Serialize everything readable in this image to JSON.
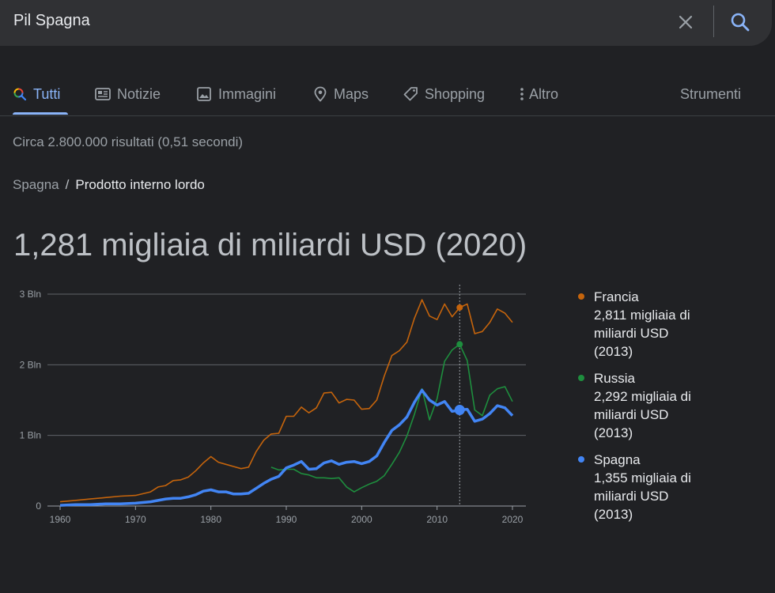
{
  "search": {
    "query": "Pil Spagna"
  },
  "icons": {
    "clear": "close-icon",
    "search": "search-icon"
  },
  "tabs": [
    {
      "label": "Tutti",
      "icon": "google-search-icon",
      "active": true
    },
    {
      "label": "Notizie",
      "icon": "news-icon"
    },
    {
      "label": "Immagini",
      "icon": "image-icon"
    },
    {
      "label": "Maps",
      "icon": "map-pin-icon"
    },
    {
      "label": "Shopping",
      "icon": "tag-icon"
    },
    {
      "label": "Altro",
      "icon": "more-vert-icon"
    }
  ],
  "tools_label": "Strumenti",
  "result_stats": "Circa 2.800.000 risultati (0,51 secondi)",
  "breadcrumb": {
    "parent": "Spagna",
    "sep": "/",
    "current": "Prodotto interno lordo"
  },
  "headline": "1,281 migliaia di miliardi USD (2020)",
  "legend": [
    {
      "name": "Francia",
      "value": "2,811 migliaia di miliardi USD",
      "year": "(2013)",
      "color": "#c5640c"
    },
    {
      "name": "Russia",
      "value": "2,292 migliaia di miliardi USD",
      "year": "(2013)",
      "color": "#1e8e3e"
    },
    {
      "name": "Spagna",
      "value": "1,355 migliaia di miliardi USD",
      "year": "(2013)",
      "color": "#4285f4"
    }
  ],
  "chart_data": {
    "type": "line",
    "ylim": [
      0,
      3
    ],
    "xlim": [
      1960,
      2020
    ],
    "y_ticks": [
      {
        "v": 0,
        "label": "0"
      },
      {
        "v": 1,
        "label": "1 Bln"
      },
      {
        "v": 2,
        "label": "2 Bln"
      },
      {
        "v": 3,
        "label": "3 Bln"
      }
    ],
    "x_ticks": [
      1960,
      1970,
      1980,
      1990,
      2000,
      2010,
      2020
    ],
    "highlight_year": 2013,
    "series": [
      {
        "name": "Francia",
        "color": "#c5640c",
        "x": [
          1960,
          1962,
          1964,
          1966,
          1968,
          1970,
          1972,
          1973,
          1974,
          1975,
          1976,
          1977,
          1978,
          1979,
          1980,
          1981,
          1982,
          1983,
          1984,
          1985,
          1986,
          1987,
          1988,
          1989,
          1990,
          1991,
          1992,
          1993,
          1994,
          1995,
          1996,
          1997,
          1998,
          1999,
          2000,
          2001,
          2002,
          2003,
          2004,
          2005,
          2006,
          2007,
          2008,
          2009,
          2010,
          2011,
          2012,
          2013,
          2014,
          2015,
          2016,
          2017,
          2018,
          2019,
          2020
        ],
        "y": [
          0.06,
          0.08,
          0.1,
          0.12,
          0.14,
          0.15,
          0.2,
          0.27,
          0.29,
          0.36,
          0.37,
          0.41,
          0.5,
          0.61,
          0.7,
          0.62,
          0.59,
          0.56,
          0.53,
          0.55,
          0.77,
          0.93,
          1.02,
          1.03,
          1.27,
          1.27,
          1.4,
          1.32,
          1.39,
          1.6,
          1.61,
          1.46,
          1.51,
          1.5,
          1.37,
          1.38,
          1.5,
          1.84,
          2.13,
          2.2,
          2.32,
          2.66,
          2.92,
          2.69,
          2.64,
          2.86,
          2.68,
          2.81,
          2.86,
          2.44,
          2.47,
          2.6,
          2.79,
          2.73,
          2.6
        ]
      },
      {
        "name": "Russia",
        "color": "#1e8e3e",
        "x": [
          1988,
          1989,
          1990,
          1991,
          1992,
          1993,
          1994,
          1995,
          1996,
          1997,
          1998,
          1999,
          2000,
          2001,
          2002,
          2003,
          2004,
          2005,
          2006,
          2007,
          2008,
          2009,
          2010,
          2011,
          2012,
          2013,
          2014,
          2015,
          2016,
          2017,
          2018,
          2019,
          2020
        ],
        "y": [
          0.55,
          0.51,
          0.52,
          0.52,
          0.46,
          0.44,
          0.4,
          0.4,
          0.39,
          0.4,
          0.27,
          0.2,
          0.26,
          0.31,
          0.35,
          0.43,
          0.59,
          0.76,
          0.99,
          1.3,
          1.66,
          1.22,
          1.52,
          2.05,
          2.21,
          2.29,
          2.06,
          1.36,
          1.28,
          1.57,
          1.66,
          1.69,
          1.48
        ]
      },
      {
        "name": "Spagna",
        "color": "#4285f4",
        "x": [
          1960,
          1962,
          1964,
          1966,
          1968,
          1970,
          1972,
          1973,
          1974,
          1975,
          1976,
          1977,
          1978,
          1979,
          1980,
          1981,
          1982,
          1983,
          1984,
          1985,
          1986,
          1987,
          1988,
          1989,
          1990,
          1991,
          1992,
          1993,
          1994,
          1995,
          1996,
          1997,
          1998,
          1999,
          2000,
          2001,
          2002,
          2003,
          2004,
          2005,
          2006,
          2007,
          2008,
          2009,
          2010,
          2011,
          2012,
          2013,
          2014,
          2015,
          2016,
          2017,
          2018,
          2019,
          2020
        ],
        "y": [
          0.01,
          0.02,
          0.02,
          0.03,
          0.03,
          0.04,
          0.06,
          0.08,
          0.1,
          0.11,
          0.11,
          0.13,
          0.16,
          0.21,
          0.23,
          0.2,
          0.2,
          0.17,
          0.17,
          0.18,
          0.25,
          0.32,
          0.38,
          0.42,
          0.54,
          0.58,
          0.63,
          0.52,
          0.53,
          0.61,
          0.64,
          0.59,
          0.62,
          0.63,
          0.6,
          0.63,
          0.71,
          0.9,
          1.07,
          1.15,
          1.26,
          1.47,
          1.64,
          1.5,
          1.43,
          1.48,
          1.34,
          1.36,
          1.37,
          1.2,
          1.23,
          1.31,
          1.42,
          1.39,
          1.28
        ]
      }
    ]
  }
}
